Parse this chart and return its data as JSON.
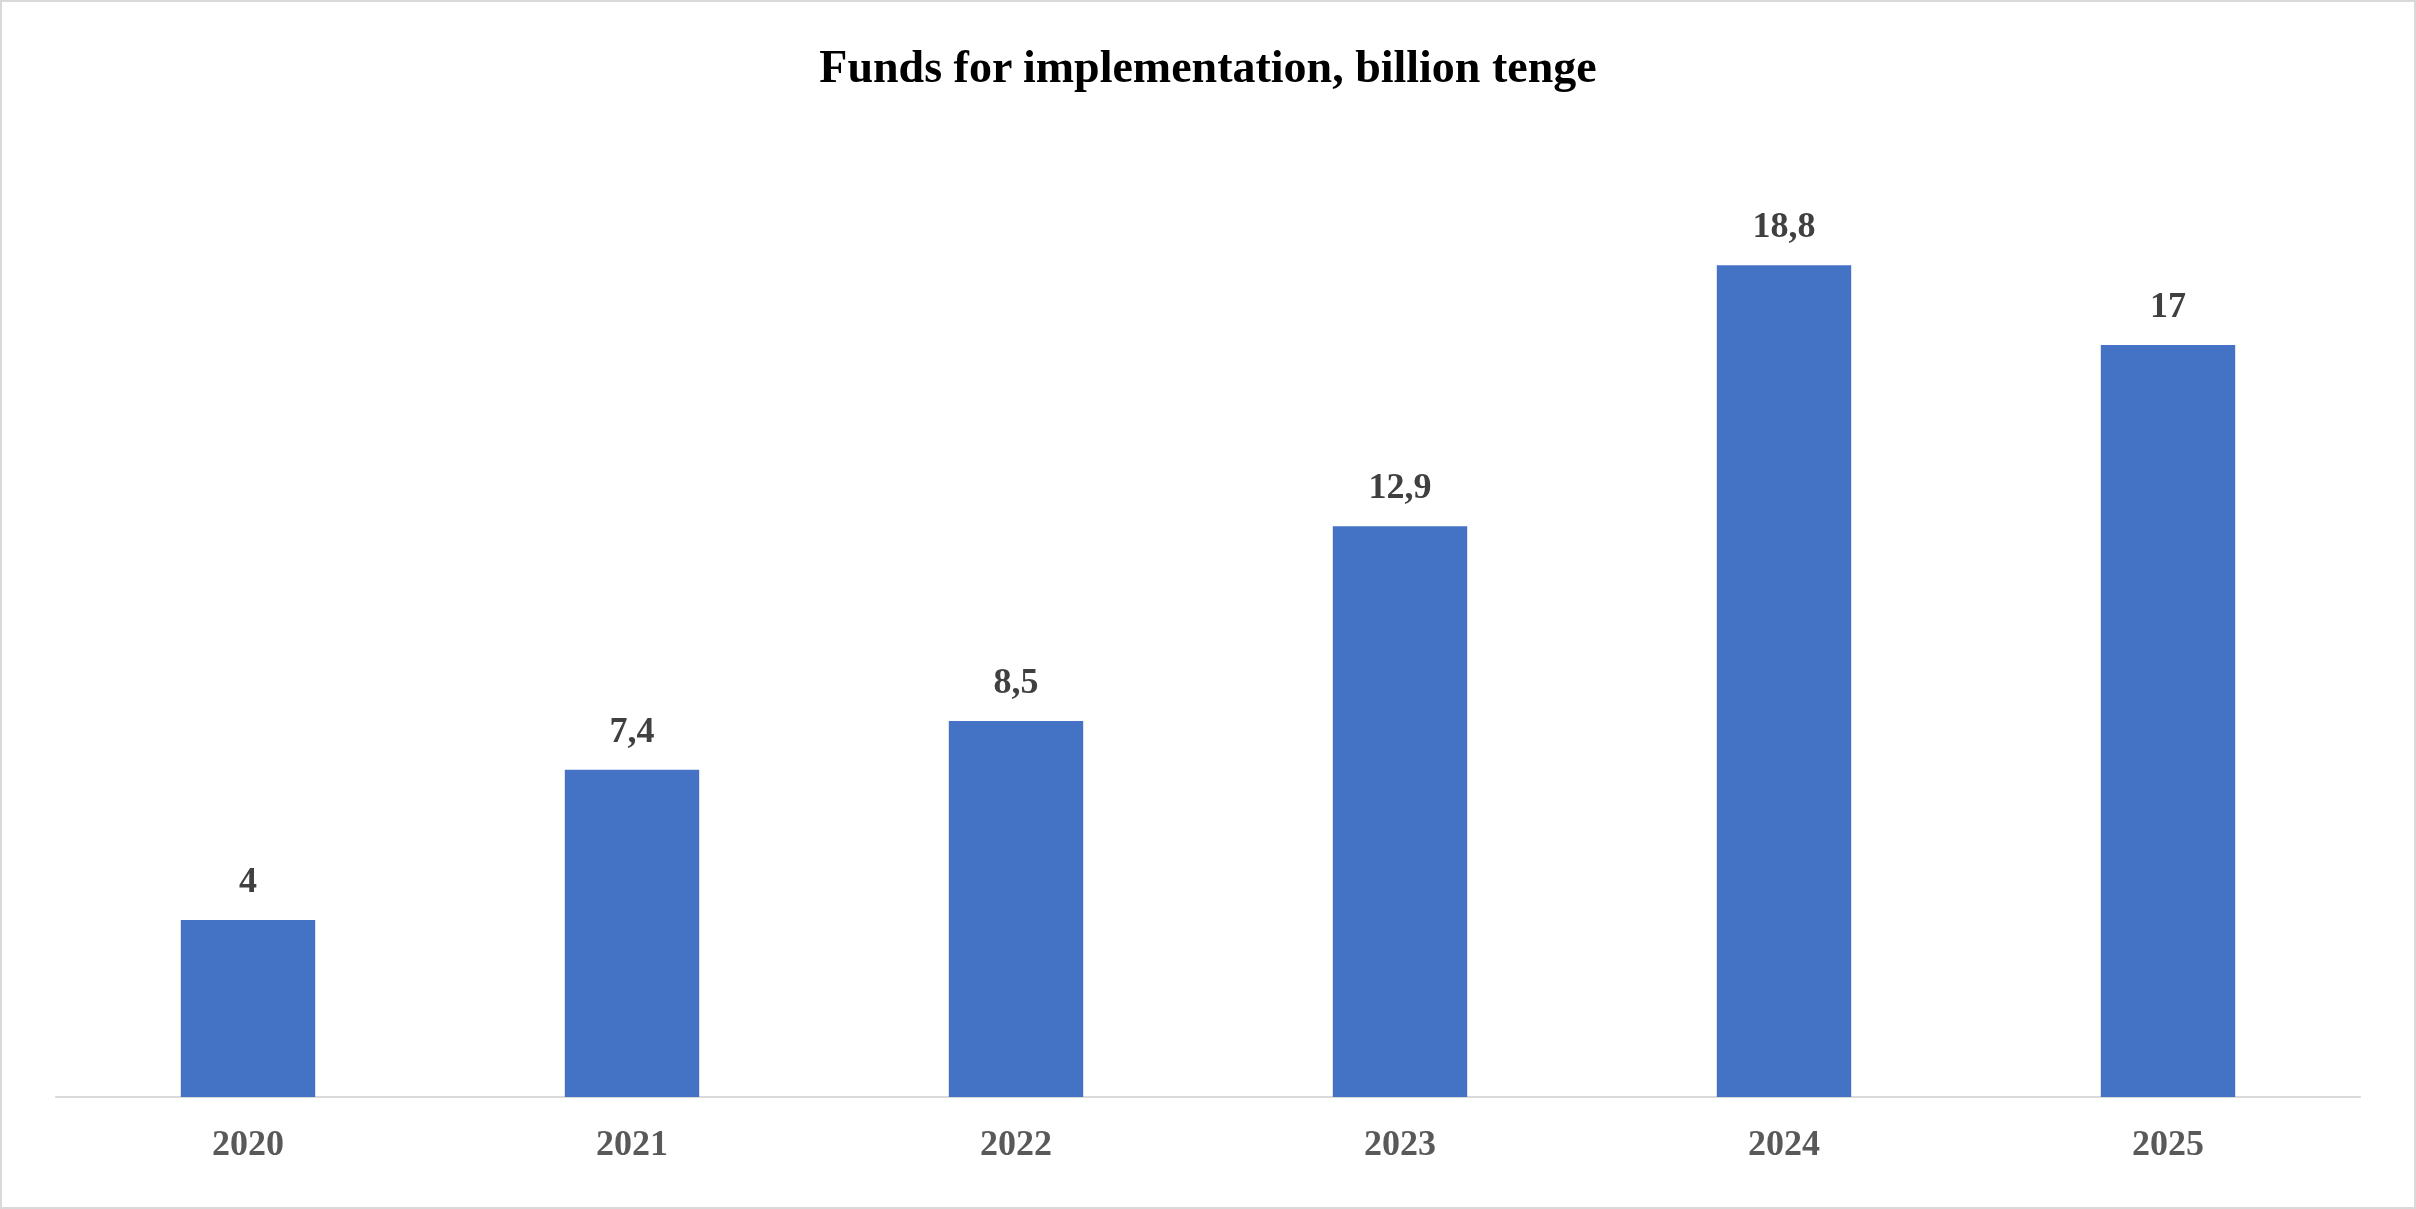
{
  "chart_data": {
    "type": "bar",
    "title": "Funds for implementation, billion tenge",
    "categories": [
      "2020",
      "2021",
      "2022",
      "2023",
      "2024",
      "2025"
    ],
    "values": [
      4,
      7.4,
      8.5,
      12.9,
      18.8,
      17
    ],
    "value_labels": [
      "4",
      "7,4",
      "8,5",
      "12,9",
      "18,8",
      "17"
    ],
    "color": "#4472c4"
  }
}
